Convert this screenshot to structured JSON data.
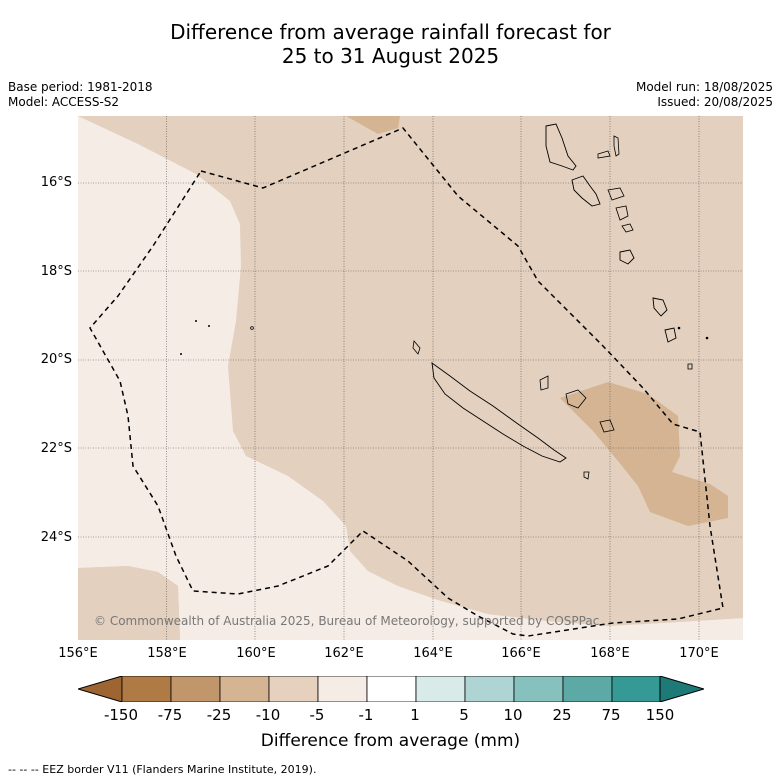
{
  "title_line1": "Difference from average rainfall forecast for",
  "title_line2": "25 to 31 August 2025",
  "base_period": "Base period: 1981-2018",
  "model": "Model: ACCESS-S2",
  "model_run": "Model run: 18/08/2025",
  "issued": "Issued: 20/08/2025",
  "copyright": "© Commonwealth of Australia 2025, Bureau of Meteorology, supported by COSPPac",
  "lat_labels": [
    "16°S",
    "18°S",
    "20°S",
    "22°S",
    "24°S"
  ],
  "lon_labels": [
    "156°E",
    "158°E",
    "160°E",
    "162°E",
    "164°E",
    "166°E",
    "168°E",
    "170°E"
  ],
  "legend": {
    "tick_labels": [
      "-150",
      "-75",
      "-25",
      "-10",
      "-5",
      "-1",
      "1",
      "5",
      "10",
      "25",
      "75",
      "150"
    ],
    "colors": [
      "#9c6531",
      "#b07a45",
      "#c2966b",
      "#d4b493",
      "#e6d1be",
      "#f5ece6",
      "#ffffff",
      "#d8ebe9",
      "#aed5d3",
      "#86c1bd",
      "#5ca9a6",
      "#359a95",
      "#1e7a76"
    ],
    "title": "Difference from average (mm)"
  },
  "footer": "--  --  -- EEZ border V11 (Flanders Marine Institute, 2019)."
}
